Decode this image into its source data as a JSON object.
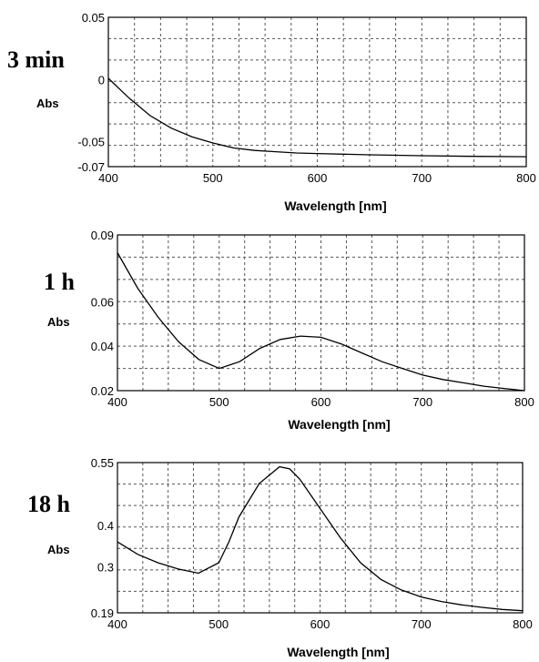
{
  "chart_data": [
    {
      "type": "line",
      "panel_label": "3 min",
      "xlabel": "Wavelength [nm]",
      "ylabel": "Abs",
      "xlim": [
        400,
        800
      ],
      "ylim": [
        -0.07,
        0.05
      ],
      "x_ticks": [
        400,
        500,
        600,
        700,
        800
      ],
      "y_ticks": [
        {
          "v": 0.05,
          "label": "0.05"
        },
        {
          "v": 0.0,
          "label": "0"
        },
        {
          "v": -0.05,
          "label": "-0.05"
        },
        {
          "v": -0.07,
          "label": "-0.07"
        }
      ],
      "grid": true,
      "series": [
        {
          "x": [
            400,
            420,
            440,
            460,
            480,
            500,
            520,
            540,
            560,
            580,
            600,
            650,
            700,
            750,
            800
          ],
          "y": [
            0.001,
            -0.015,
            -0.029,
            -0.039,
            -0.046,
            -0.051,
            -0.055,
            -0.057,
            -0.058,
            -0.059,
            -0.0595,
            -0.0605,
            -0.0612,
            -0.0617,
            -0.062
          ]
        }
      ]
    },
    {
      "type": "line",
      "panel_label": "1 h",
      "xlabel": "Wavelength [nm]",
      "ylabel": "Abs",
      "xlim": [
        400,
        800
      ],
      "ylim": [
        0.02,
        0.09
      ],
      "x_ticks": [
        400,
        500,
        600,
        700,
        800
      ],
      "y_ticks": [
        {
          "v": 0.09,
          "label": "0.09"
        },
        {
          "v": 0.06,
          "label": "0.06"
        },
        {
          "v": 0.04,
          "label": "0.04"
        },
        {
          "v": 0.02,
          "label": "0.02"
        }
      ],
      "grid": true,
      "series": [
        {
          "x": [
            400,
            420,
            440,
            460,
            480,
            500,
            520,
            540,
            560,
            580,
            600,
            620,
            640,
            660,
            680,
            700,
            720,
            740,
            760,
            780,
            800
          ],
          "y": [
            0.082,
            0.066,
            0.053,
            0.042,
            0.034,
            0.03,
            0.033,
            0.039,
            0.043,
            0.0445,
            0.044,
            0.041,
            0.037,
            0.033,
            0.03,
            0.027,
            0.025,
            0.0235,
            0.022,
            0.021,
            0.02
          ]
        }
      ]
    },
    {
      "type": "line",
      "panel_label": "18 h",
      "xlabel": "Wavelength [nm]",
      "ylabel": "Abs",
      "xlim": [
        400,
        800
      ],
      "ylim": [
        0.19,
        0.55
      ],
      "x_ticks": [
        400,
        500,
        600,
        700,
        800
      ],
      "y_ticks": [
        {
          "v": 0.55,
          "label": "0.55"
        },
        {
          "v": 0.4,
          "label": "0.4"
        },
        {
          "v": 0.3,
          "label": "0.3"
        },
        {
          "v": 0.19,
          "label": "0.19"
        }
      ],
      "grid": true,
      "series": [
        {
          "x": [
            400,
            420,
            440,
            460,
            480,
            500,
            510,
            520,
            540,
            560,
            570,
            580,
            600,
            620,
            640,
            660,
            680,
            700,
            720,
            740,
            760,
            780,
            800
          ],
          "y": [
            0.36,
            0.33,
            0.31,
            0.295,
            0.285,
            0.31,
            0.36,
            0.42,
            0.5,
            0.54,
            0.535,
            0.51,
            0.44,
            0.37,
            0.31,
            0.27,
            0.245,
            0.228,
            0.217,
            0.209,
            0.203,
            0.198,
            0.195
          ]
        }
      ]
    }
  ]
}
